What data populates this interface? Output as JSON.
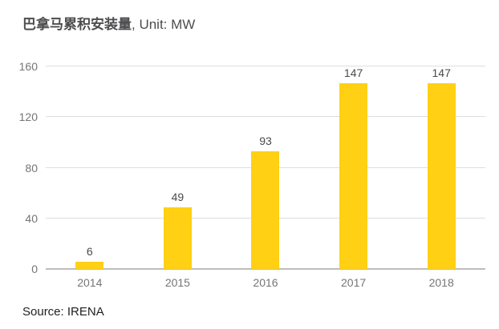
{
  "title": {
    "main": "巴拿马累积安装量",
    "suffix": ", Unit: MW"
  },
  "source": "Source: IRENA",
  "colors": {
    "bar": "#ffd013",
    "gridline": "#dedede",
    "zero_line": "#bdbdbd",
    "title_text": "#4d4d4f",
    "axis_text": "#757575",
    "value_text": "#4a4a4a",
    "source_text": "#1f1f1f",
    "background": "#ffffff"
  },
  "chart_data": {
    "type": "bar",
    "title": "巴拿马累积安装量, Unit: MW",
    "categories": [
      "2014",
      "2015",
      "2016",
      "2017",
      "2018"
    ],
    "values": [
      6,
      49,
      93,
      147,
      147
    ],
    "xlabel": "",
    "ylabel": "",
    "ylim": [
      0,
      160
    ],
    "yticks": [
      0,
      40,
      80,
      120,
      160
    ],
    "grid": true,
    "legend": false,
    "annotations": "value labels above each bar"
  }
}
